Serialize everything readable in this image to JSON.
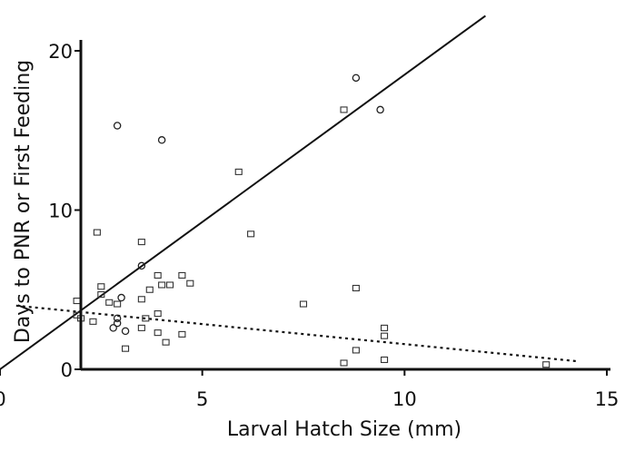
{
  "chart_data": {
    "type": "scatter",
    "title": "",
    "xlabel": "Larval Hatch Size (mm)",
    "ylabel": "Days to PNR or First Feeding",
    "xlim": [
      0,
      15
    ],
    "ylim": [
      0,
      21
    ],
    "xticks": [
      0,
      5,
      10,
      15
    ],
    "yticks": [
      0,
      10,
      20
    ],
    "grid": false,
    "legend": "none",
    "series": [
      {
        "marker": "circle",
        "points": [
          [
            2.9,
            15.3
          ],
          [
            4.0,
            14.4
          ],
          [
            8.8,
            18.3
          ],
          [
            9.4,
            16.3
          ],
          [
            3.5,
            6.5
          ],
          [
            2.9,
            3.2
          ],
          [
            2.9,
            2.9
          ],
          [
            2.8,
            2.6
          ],
          [
            3.1,
            2.4
          ],
          [
            3.0,
            4.5
          ]
        ]
      },
      {
        "marker": "square",
        "points": [
          [
            8.5,
            16.3
          ],
          [
            5.9,
            12.4
          ],
          [
            2.4,
            8.6
          ],
          [
            3.5,
            8.0
          ],
          [
            6.2,
            8.5
          ],
          [
            1.9,
            4.3
          ],
          [
            2.5,
            5.2
          ],
          [
            2.5,
            4.7
          ],
          [
            2.7,
            4.2
          ],
          [
            2.9,
            4.1
          ],
          [
            3.5,
            4.4
          ],
          [
            3.7,
            5.0
          ],
          [
            3.9,
            5.9
          ],
          [
            4.0,
            5.3
          ],
          [
            4.2,
            5.3
          ],
          [
            4.7,
            5.4
          ],
          [
            4.5,
            5.9
          ],
          [
            7.5,
            4.1
          ],
          [
            8.8,
            5.1
          ],
          [
            3.6,
            3.2
          ],
          [
            3.9,
            3.5
          ],
          [
            3.5,
            2.6
          ],
          [
            3.9,
            2.3
          ],
          [
            4.1,
            1.7
          ],
          [
            3.1,
            1.3
          ],
          [
            4.5,
            2.2
          ],
          [
            1.9,
            3.4
          ],
          [
            2.0,
            3.2
          ],
          [
            2.3,
            3.0
          ],
          [
            8.8,
            1.2
          ],
          [
            8.5,
            0.4
          ],
          [
            9.5,
            2.6
          ],
          [
            9.5,
            2.1
          ],
          [
            9.5,
            0.6
          ],
          [
            13.5,
            0.3
          ]
        ]
      }
    ],
    "lines": [
      {
        "style": "solid",
        "points": [
          [
            0,
            0
          ],
          [
            12.0,
            22.2
          ]
        ]
      },
      {
        "style": "dotted",
        "points": [
          [
            0.4,
            4.0
          ],
          [
            14.3,
            0.5
          ]
        ]
      }
    ]
  }
}
